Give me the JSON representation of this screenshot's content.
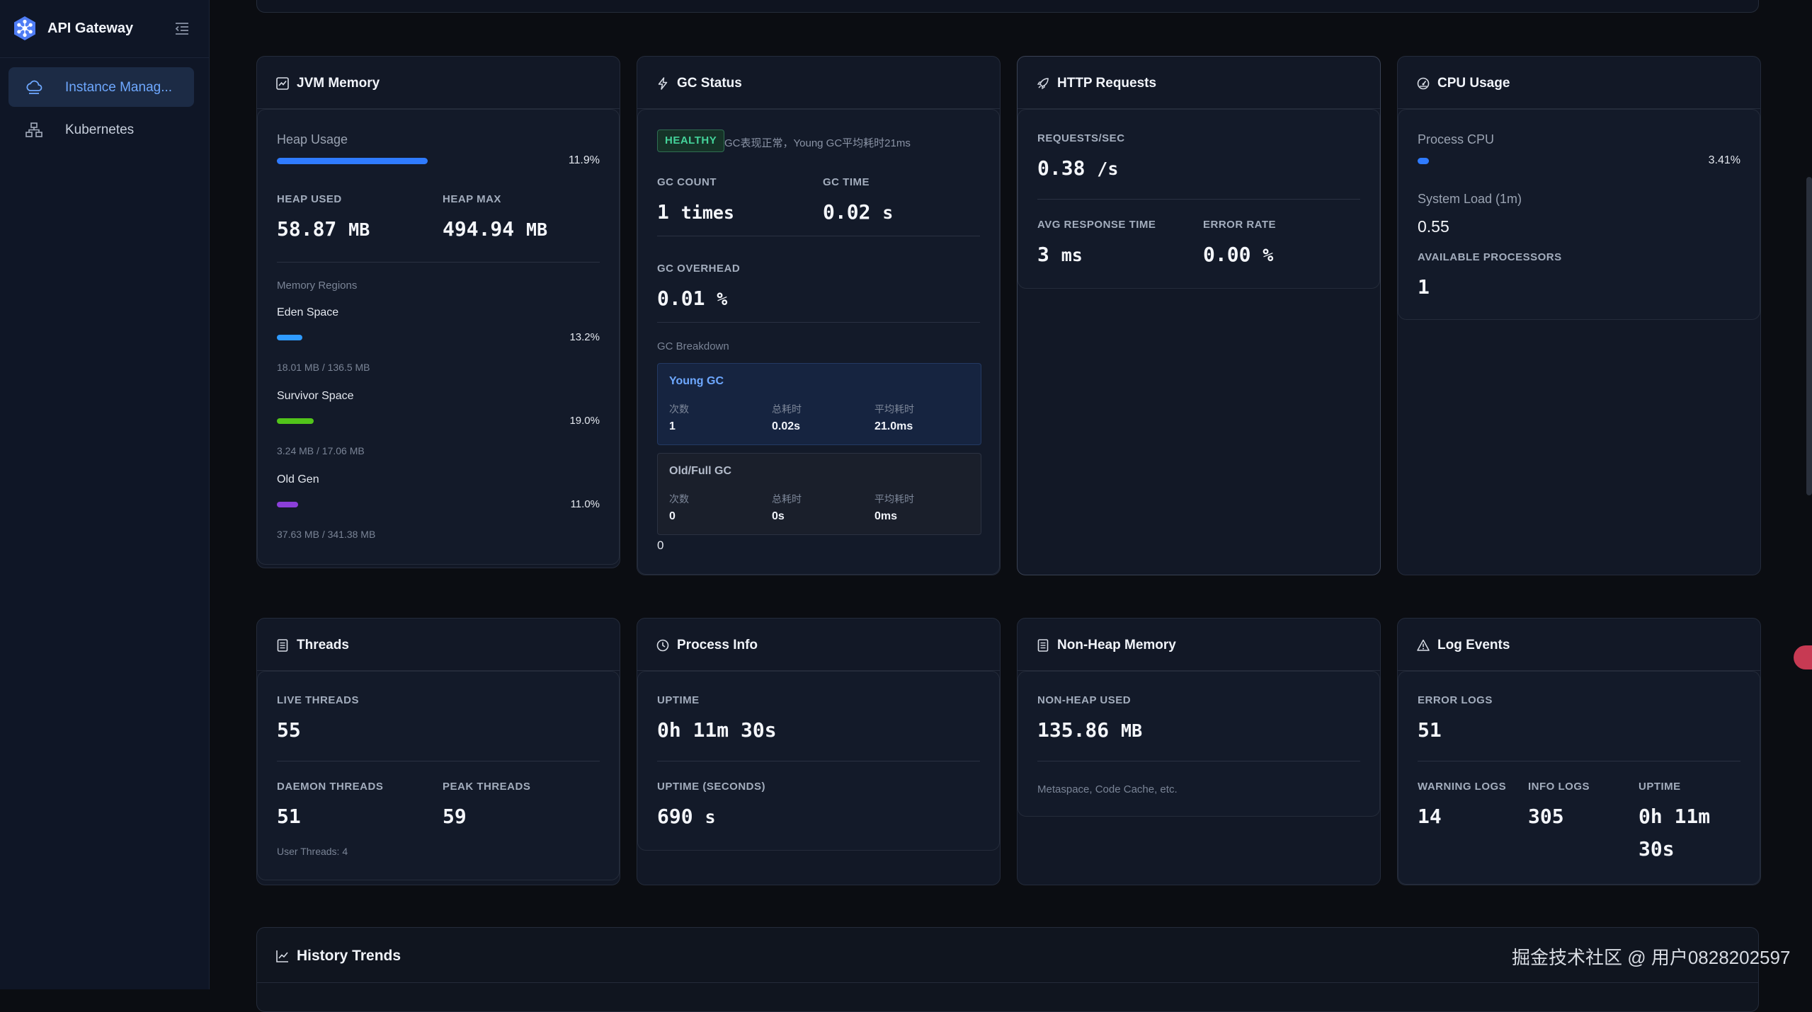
{
  "app": {
    "title": "API Gateway"
  },
  "sidebar": {
    "items": [
      {
        "label": "Instance Manag...",
        "icon": "cloud-icon",
        "active": true
      },
      {
        "label": "Kubernetes",
        "icon": "cluster-icon",
        "active": false
      }
    ]
  },
  "cards": {
    "jvm": {
      "title": "JVM Memory",
      "heap_usage_label": "Heap Usage",
      "heap_usage_pct": "11.9%",
      "heap_usage_fraction": 0.119,
      "heap_used_label": "HEAP USED",
      "heap_used_value": "58.87",
      "heap_used_unit": "MB",
      "heap_max_label": "HEAP MAX",
      "heap_max_value": "494.94",
      "heap_max_unit": "MB",
      "regions_label": "Memory Regions",
      "regions": [
        {
          "name": "Eden Space",
          "pct": "13.2%",
          "fraction": 0.132,
          "detail": "18.01 MB / 136.5 MB",
          "color": "#2f9bff"
        },
        {
          "name": "Survivor Space",
          "pct": "19.0%",
          "fraction": 0.19,
          "detail": "3.24 MB / 17.06 MB",
          "color": "#52c41a"
        },
        {
          "name": "Old Gen",
          "pct": "11.0%",
          "fraction": 0.11,
          "detail": "37.63 MB / 341.38 MB",
          "color": "#8b3fd9"
        }
      ]
    },
    "gc": {
      "title": "GC Status",
      "badge": "HEALTHY",
      "summary": "GC表现正常，Young GC平均耗时21ms",
      "count_label": "GC COUNT",
      "count_value": "1",
      "count_unit": "times",
      "time_label": "GC TIME",
      "time_value": "0.02",
      "time_unit": "s",
      "overhead_label": "GC OVERHEAD",
      "overhead_value": "0.01",
      "overhead_unit": "%",
      "breakdown_label": "GC Breakdown",
      "young": {
        "title": "Young GC",
        "k1": "次数",
        "v1": "1",
        "k2": "总耗时",
        "v2": "0.02s",
        "k3": "平均耗时",
        "v3": "21.0ms"
      },
      "old": {
        "title": "Old/Full GC",
        "k1": "次数",
        "v1": "0",
        "k2": "总耗时",
        "v2": "0s",
        "k3": "平均耗时",
        "v3": "0ms"
      },
      "footer": "0"
    },
    "http": {
      "title": "HTTP Requests",
      "rps_label": "REQUESTS/SEC",
      "rps_value": "0.38",
      "rps_unit": "/s",
      "avg_label": "AVG RESPONSE TIME",
      "avg_value": "3",
      "avg_unit": "ms",
      "err_label": "ERROR RATE",
      "err_value": "0.00",
      "err_unit": "%"
    },
    "cpu": {
      "title": "CPU Usage",
      "process_label": "Process CPU",
      "process_pct": "3.41%",
      "process_fraction": 0.0341,
      "load_label": "System Load (1m)",
      "load_value": "0.55",
      "proc_label": "AVAILABLE PROCESSORS",
      "proc_value": "1"
    },
    "threads": {
      "title": "Threads",
      "live_label": "LIVE THREADS",
      "live_value": "55",
      "daemon_label": "DAEMON THREADS",
      "daemon_value": "51",
      "peak_label": "PEAK THREADS",
      "peak_value": "59",
      "user_threads": "User Threads: 4"
    },
    "process": {
      "title": "Process Info",
      "uptime_label": "UPTIME",
      "uptime_value": "0h 11m 30s",
      "uptime_sec_label": "UPTIME (SECONDS)",
      "uptime_sec_value": "690",
      "uptime_sec_unit": "s"
    },
    "nonheap": {
      "title": "Non-Heap Memory",
      "used_label": "NON-HEAP USED",
      "used_value": "135.86",
      "used_unit": "MB",
      "note": "Metaspace, Code Cache, etc."
    },
    "logs": {
      "title": "Log Events",
      "error_label": "ERROR LOGS",
      "error_value": "51",
      "warn_label": "WARNING LOGS",
      "warn_value": "14",
      "info_label": "INFO LOGS",
      "info_value": "305",
      "uptime_label": "UPTIME",
      "uptime_line1": "0h 11m",
      "uptime_line2": "30s"
    },
    "history": {
      "title": "History Trends"
    }
  },
  "watermark": "掘金技术社区 @ 用户0828202597",
  "colors": {
    "accent": "#6ea8ff",
    "healthy": "#44d39a",
    "bar_blue": "#2f7bff"
  }
}
